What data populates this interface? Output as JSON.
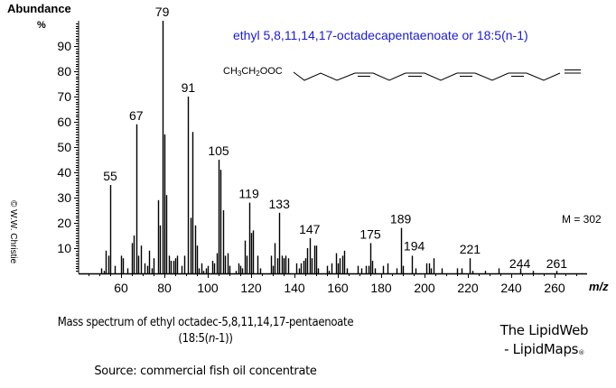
{
  "header": {
    "y_axis_title": "Abundance",
    "y_axis_unit": "%",
    "compound_title": "ethyl 5,8,11,14,17-octadecapentaenoate or 18:5(n-1)",
    "formula_prefix": {
      "a": "CH",
      "s1": "3",
      "b": "CH",
      "s2": "2",
      "c": "OOC"
    },
    "molecular_ion": "M = 302",
    "copyright": "© W.W. Christie"
  },
  "footer": {
    "caption_line1": "Mass spectrum of ethyl octadec-5,8,11,14,17-pentaenoate",
    "caption_line2_pre": "(18:5(",
    "caption_line2_italic": "n",
    "caption_line2_post": "-1))",
    "source": "Source: commercial fish oil concentrate",
    "brand_line1": "The LipidWeb",
    "brand_line2": "- LipidMaps",
    "brand_reg": "®"
  },
  "colors": {
    "title": "#1a1adb",
    "bars": "#000000",
    "axis": "#000000"
  },
  "chart_data": {
    "type": "bar",
    "title": "ethyl 5,8,11,14,17-octadecapentaenoate or 18:5(n-1)",
    "xlabel": "m/z",
    "ylabel": "Abundance %",
    "xlim": [
      40,
      270
    ],
    "ylim": [
      0,
      100
    ],
    "x_ticks": [
      60,
      80,
      100,
      120,
      140,
      160,
      180,
      200,
      220,
      240,
      260
    ],
    "y_ticks": [
      10,
      20,
      30,
      40,
      50,
      60,
      70,
      80,
      90
    ],
    "grid": false,
    "legend": "none",
    "annotations": [
      "M = 302"
    ],
    "labeled_peaks": [
      55,
      67,
      79,
      91,
      105,
      119,
      133,
      147,
      175,
      189,
      194,
      221,
      244,
      261
    ],
    "peaks": [
      [
        51,
        2
      ],
      [
        52,
        1
      ],
      [
        53,
        9
      ],
      [
        54,
        7
      ],
      [
        55,
        35
      ],
      [
        57,
        3
      ],
      [
        60,
        7
      ],
      [
        61,
        6
      ],
      [
        63,
        2
      ],
      [
        65,
        12
      ],
      [
        66,
        15
      ],
      [
        67,
        59
      ],
      [
        68,
        7
      ],
      [
        69,
        11
      ],
      [
        71,
        4
      ],
      [
        72,
        3
      ],
      [
        73,
        9
      ],
      [
        74,
        2
      ],
      [
        75,
        6
      ],
      [
        77,
        29
      ],
      [
        78,
        19
      ],
      [
        79,
        100
      ],
      [
        80,
        55
      ],
      [
        81,
        31
      ],
      [
        82,
        7
      ],
      [
        83,
        5
      ],
      [
        84,
        5
      ],
      [
        85,
        6
      ],
      [
        86,
        7
      ],
      [
        88,
        3
      ],
      [
        89,
        7
      ],
      [
        91,
        70
      ],
      [
        92,
        22
      ],
      [
        93,
        56
      ],
      [
        94,
        19
      ],
      [
        95,
        11
      ],
      [
        96,
        2
      ],
      [
        97,
        4
      ],
      [
        98,
        1
      ],
      [
        99,
        2
      ],
      [
        100,
        3
      ],
      [
        102,
        5
      ],
      [
        103,
        4
      ],
      [
        104,
        8
      ],
      [
        105,
        45
      ],
      [
        106,
        41
      ],
      [
        107,
        25
      ],
      [
        108,
        7
      ],
      [
        109,
        8
      ],
      [
        110,
        3
      ],
      [
        113,
        1
      ],
      [
        114,
        4
      ],
      [
        115,
        3
      ],
      [
        116,
        2
      ],
      [
        117,
        13
      ],
      [
        118,
        7
      ],
      [
        119,
        28
      ],
      [
        120,
        16
      ],
      [
        121,
        17
      ],
      [
        123,
        7
      ],
      [
        124,
        2
      ],
      [
        129,
        7
      ],
      [
        130,
        3
      ],
      [
        131,
        12
      ],
      [
        132,
        6
      ],
      [
        133,
        24
      ],
      [
        134,
        7
      ],
      [
        135,
        6
      ],
      [
        136,
        7
      ],
      [
        137,
        6
      ],
      [
        141,
        4
      ],
      [
        142,
        2
      ],
      [
        143,
        4
      ],
      [
        144,
        5
      ],
      [
        145,
        6
      ],
      [
        146,
        10
      ],
      [
        147,
        14
      ],
      [
        148,
        6
      ],
      [
        149,
        11
      ],
      [
        150,
        11
      ],
      [
        151,
        2
      ],
      [
        155,
        3
      ],
      [
        156,
        1
      ],
      [
        157,
        4
      ],
      [
        159,
        8
      ],
      [
        160,
        4
      ],
      [
        161,
        6
      ],
      [
        162,
        7
      ],
      [
        163,
        9
      ],
      [
        164,
        2
      ],
      [
        169,
        3
      ],
      [
        171,
        2
      ],
      [
        173,
        3
      ],
      [
        174,
        3
      ],
      [
        175,
        12
      ],
      [
        176,
        5
      ],
      [
        177,
        2
      ],
      [
        181,
        3
      ],
      [
        183,
        4
      ],
      [
        187,
        2
      ],
      [
        189,
        18
      ],
      [
        190,
        3
      ],
      [
        194,
        7
      ],
      [
        196,
        2
      ],
      [
        201,
        4
      ],
      [
        202,
        4
      ],
      [
        203,
        2
      ],
      [
        204,
        6
      ],
      [
        208,
        2
      ],
      [
        215,
        2
      ],
      [
        217,
        2
      ],
      [
        221,
        6
      ],
      [
        222,
        1
      ],
      [
        228,
        1
      ],
      [
        234,
        2
      ],
      [
        244,
        2
      ],
      [
        250,
        1
      ],
      [
        261,
        1
      ]
    ]
  }
}
